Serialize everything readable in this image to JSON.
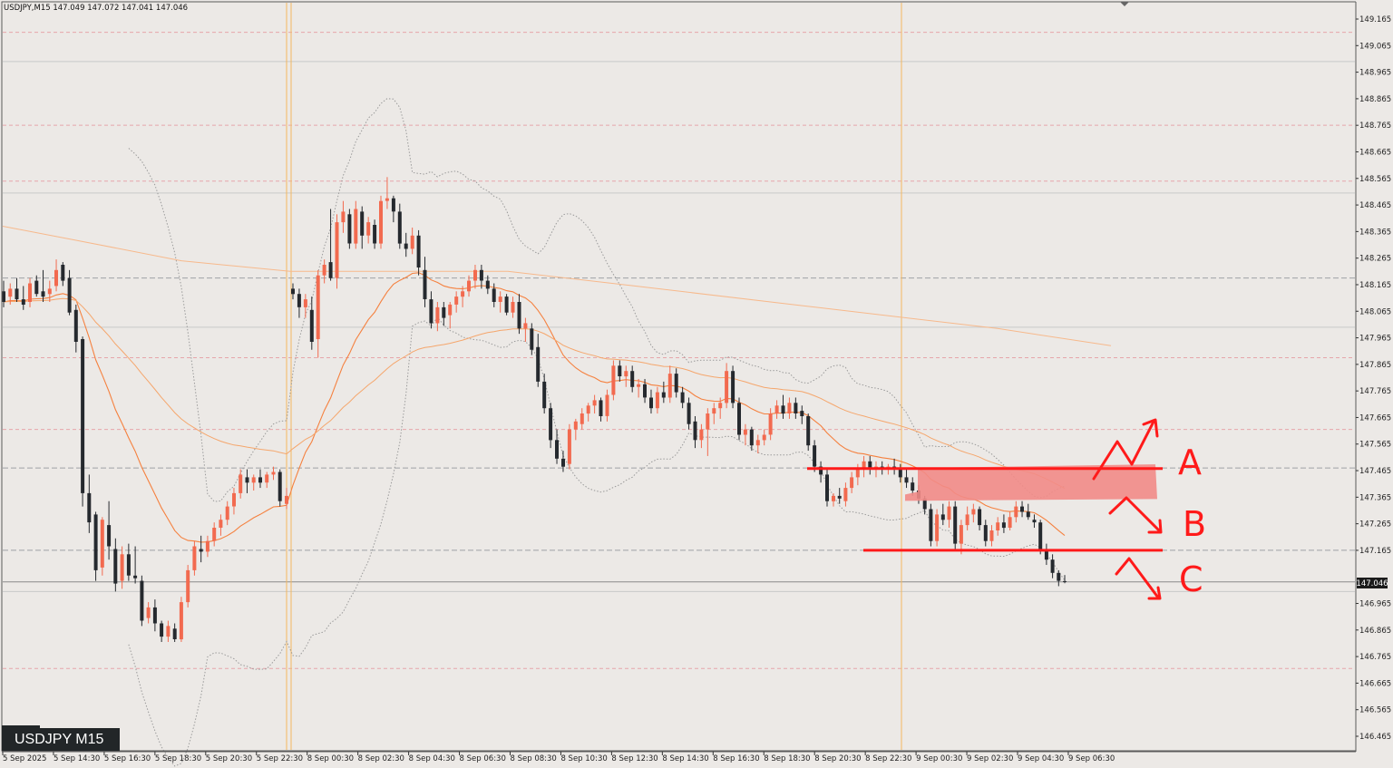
{
  "header": {
    "text": "USDJPY,M15  147.049 147.072 147.041 147.046"
  },
  "watermark": {
    "text": "USDJPY M15"
  },
  "price_tag": {
    "text": "147.046"
  },
  "colors": {
    "background": "#ece9e6",
    "bull": "#f26a4f",
    "bear": "#25292e",
    "ma": "#f59a58",
    "annotation": "#ff1a1a",
    "zone": "#f28b87",
    "session": "#f4b860"
  },
  "chart_data": {
    "type": "candlestick",
    "symbol": "USDJPY",
    "timeframe": "M15",
    "ylim": [
      146.415,
      149.215
    ],
    "yticks": [
      149.165,
      149.065,
      148.965,
      148.865,
      148.765,
      148.665,
      148.565,
      148.465,
      148.365,
      148.265,
      148.165,
      148.065,
      147.965,
      147.865,
      147.765,
      147.665,
      147.565,
      147.465,
      147.365,
      147.265,
      147.165,
      147.065,
      146.965,
      146.865,
      146.765,
      146.665,
      146.565,
      146.465
    ],
    "xticks": [
      "5 Sep 2025",
      "5 Sep 14:30",
      "5 Sep 16:30",
      "5 Sep 18:30",
      "5 Sep 20:30",
      "5 Sep 22:30",
      "8 Sep 00:30",
      "8 Sep 02:30",
      "8 Sep 04:30",
      "8 Sep 06:30",
      "8 Sep 08:30",
      "8 Sep 10:30",
      "8 Sep 12:30",
      "8 Sep 14:30",
      "8 Sep 16:30",
      "8 Sep 18:30",
      "8 Sep 20:30",
      "8 Sep 22:30",
      "9 Sep 00:30",
      "9 Sep 02:30",
      "9 Sep 04:30",
      "9 Sep 06:30"
    ],
    "current_price": 147.046,
    "annotations": {
      "zone_labels": [
        "A",
        "B",
        "C"
      ],
      "levels": [
        147.473,
        147.165
      ],
      "zone": [
        147.365,
        147.475
      ]
    },
    "candles": [
      {
        "o": 148.14,
        "h": 148.18,
        "l": 148.08,
        "c": 148.1
      },
      {
        "o": 148.12,
        "h": 148.17,
        "l": 148.09,
        "c": 148.15
      },
      {
        "o": 148.15,
        "h": 148.19,
        "l": 148.1,
        "c": 148.11
      },
      {
        "o": 148.11,
        "h": 148.16,
        "l": 148.07,
        "c": 148.09
      },
      {
        "o": 148.1,
        "h": 148.19,
        "l": 148.08,
        "c": 148.17
      },
      {
        "o": 148.18,
        "h": 148.2,
        "l": 148.12,
        "c": 148.13
      },
      {
        "o": 148.14,
        "h": 148.22,
        "l": 148.1,
        "c": 148.12
      },
      {
        "o": 148.13,
        "h": 148.18,
        "l": 148.1,
        "c": 148.15
      },
      {
        "o": 148.16,
        "h": 148.26,
        "l": 148.14,
        "c": 148.22
      },
      {
        "o": 148.24,
        "h": 148.25,
        "l": 148.16,
        "c": 148.18
      },
      {
        "o": 148.19,
        "h": 148.22,
        "l": 148.05,
        "c": 148.06
      },
      {
        "o": 148.07,
        "h": 148.09,
        "l": 147.91,
        "c": 147.95
      },
      {
        "o": 147.96,
        "h": 147.97,
        "l": 147.33,
        "c": 147.38
      },
      {
        "o": 147.38,
        "h": 147.45,
        "l": 147.23,
        "c": 147.27
      },
      {
        "o": 147.3,
        "h": 147.31,
        "l": 147.05,
        "c": 147.09
      },
      {
        "o": 147.1,
        "h": 147.29,
        "l": 147.07,
        "c": 147.28
      },
      {
        "o": 147.26,
        "h": 147.35,
        "l": 147.13,
        "c": 147.18
      },
      {
        "o": 147.17,
        "h": 147.21,
        "l": 147.01,
        "c": 147.04
      },
      {
        "o": 147.05,
        "h": 147.18,
        "l": 147.02,
        "c": 147.15
      },
      {
        "o": 147.15,
        "h": 147.19,
        "l": 147.05,
        "c": 147.07
      },
      {
        "o": 147.07,
        "h": 147.18,
        "l": 147.04,
        "c": 147.06
      },
      {
        "o": 147.05,
        "h": 147.07,
        "l": 146.88,
        "c": 146.9
      },
      {
        "o": 146.91,
        "h": 146.97,
        "l": 146.89,
        "c": 146.95
      },
      {
        "o": 146.95,
        "h": 146.98,
        "l": 146.86,
        "c": 146.89
      },
      {
        "o": 146.89,
        "h": 146.9,
        "l": 146.82,
        "c": 146.84
      },
      {
        "o": 146.84,
        "h": 146.9,
        "l": 146.82,
        "c": 146.88
      },
      {
        "o": 146.87,
        "h": 146.89,
        "l": 146.82,
        "c": 146.83
      },
      {
        "o": 146.83,
        "h": 146.99,
        "l": 146.82,
        "c": 146.97
      },
      {
        "o": 146.97,
        "h": 147.11,
        "l": 146.95,
        "c": 147.09
      },
      {
        "o": 147.09,
        "h": 147.2,
        "l": 147.07,
        "c": 147.18
      },
      {
        "o": 147.17,
        "h": 147.22,
        "l": 147.12,
        "c": 147.16
      },
      {
        "o": 147.16,
        "h": 147.22,
        "l": 147.14,
        "c": 147.2
      },
      {
        "o": 147.2,
        "h": 147.27,
        "l": 147.18,
        "c": 147.25
      },
      {
        "o": 147.25,
        "h": 147.3,
        "l": 147.22,
        "c": 147.28
      },
      {
        "o": 147.28,
        "h": 147.35,
        "l": 147.26,
        "c": 147.33
      },
      {
        "o": 147.33,
        "h": 147.4,
        "l": 147.3,
        "c": 147.38
      },
      {
        "o": 147.38,
        "h": 147.47,
        "l": 147.36,
        "c": 147.45
      },
      {
        "o": 147.44,
        "h": 147.47,
        "l": 147.38,
        "c": 147.42
      },
      {
        "o": 147.42,
        "h": 147.45,
        "l": 147.39,
        "c": 147.44
      },
      {
        "o": 147.44,
        "h": 147.47,
        "l": 147.4,
        "c": 147.42
      },
      {
        "o": 147.42,
        "h": 147.46,
        "l": 147.4,
        "c": 147.45
      },
      {
        "o": 147.45,
        "h": 147.48,
        "l": 147.43,
        "c": 147.46
      },
      {
        "o": 147.46,
        "h": 147.47,
        "l": 147.33,
        "c": 147.35
      },
      {
        "o": 147.34,
        "h": 147.4,
        "l": 147.32,
        "c": 147.37
      },
      {
        "o": 148.15,
        "h": 148.17,
        "l": 148.11,
        "c": 148.13
      },
      {
        "o": 148.13,
        "h": 148.15,
        "l": 148.04,
        "c": 148.08
      },
      {
        "o": 148.08,
        "h": 148.13,
        "l": 148.04,
        "c": 148.11
      },
      {
        "o": 148.07,
        "h": 148.12,
        "l": 147.92,
        "c": 147.95
      },
      {
        "o": 147.96,
        "h": 148.22,
        "l": 147.89,
        "c": 148.2
      },
      {
        "o": 148.2,
        "h": 148.26,
        "l": 148.17,
        "c": 148.24
      },
      {
        "o": 148.25,
        "h": 148.45,
        "l": 148.18,
        "c": 148.19
      },
      {
        "o": 148.19,
        "h": 148.43,
        "l": 148.15,
        "c": 148.4
      },
      {
        "o": 148.4,
        "h": 148.48,
        "l": 148.36,
        "c": 148.44
      },
      {
        "o": 148.43,
        "h": 148.45,
        "l": 148.3,
        "c": 148.32
      },
      {
        "o": 148.32,
        "h": 148.48,
        "l": 148.3,
        "c": 148.45
      },
      {
        "o": 148.44,
        "h": 148.46,
        "l": 148.3,
        "c": 148.35
      },
      {
        "o": 148.35,
        "h": 148.42,
        "l": 148.32,
        "c": 148.4
      },
      {
        "o": 148.39,
        "h": 148.41,
        "l": 148.3,
        "c": 148.32
      },
      {
        "o": 148.32,
        "h": 148.5,
        "l": 148.3,
        "c": 148.48
      },
      {
        "o": 148.48,
        "h": 148.57,
        "l": 148.45,
        "c": 148.49
      },
      {
        "o": 148.49,
        "h": 148.5,
        "l": 148.4,
        "c": 148.44
      },
      {
        "o": 148.44,
        "h": 148.47,
        "l": 148.3,
        "c": 148.32
      },
      {
        "o": 148.32,
        "h": 148.36,
        "l": 148.27,
        "c": 148.3
      },
      {
        "o": 148.3,
        "h": 148.38,
        "l": 148.28,
        "c": 148.35
      },
      {
        "o": 148.35,
        "h": 148.37,
        "l": 148.2,
        "c": 148.23
      },
      {
        "o": 148.22,
        "h": 148.27,
        "l": 148.08,
        "c": 148.11
      },
      {
        "o": 148.11,
        "h": 148.14,
        "l": 148.0,
        "c": 148.02
      },
      {
        "o": 148.02,
        "h": 148.1,
        "l": 147.99,
        "c": 148.08
      },
      {
        "o": 148.08,
        "h": 148.1,
        "l": 148.01,
        "c": 148.04
      },
      {
        "o": 148.05,
        "h": 148.1,
        "l": 148.0,
        "c": 148.09
      },
      {
        "o": 148.09,
        "h": 148.14,
        "l": 148.06,
        "c": 148.12
      },
      {
        "o": 148.12,
        "h": 148.16,
        "l": 148.08,
        "c": 148.14
      },
      {
        "o": 148.14,
        "h": 148.2,
        "l": 148.12,
        "c": 148.18
      },
      {
        "o": 148.18,
        "h": 148.24,
        "l": 148.15,
        "c": 148.22
      },
      {
        "o": 148.22,
        "h": 148.24,
        "l": 148.15,
        "c": 148.18
      },
      {
        "o": 148.18,
        "h": 148.2,
        "l": 148.13,
        "c": 148.15
      },
      {
        "o": 148.15,
        "h": 148.17,
        "l": 148.08,
        "c": 148.1
      },
      {
        "o": 148.1,
        "h": 148.14,
        "l": 148.06,
        "c": 148.12
      },
      {
        "o": 148.12,
        "h": 148.13,
        "l": 148.05,
        "c": 148.06
      },
      {
        "o": 148.06,
        "h": 148.12,
        "l": 148.04,
        "c": 148.1
      },
      {
        "o": 148.1,
        "h": 148.13,
        "l": 147.98,
        "c": 148.0
      },
      {
        "o": 148.0,
        "h": 148.04,
        "l": 147.95,
        "c": 148.02
      },
      {
        "o": 148.0,
        "h": 148.02,
        "l": 147.9,
        "c": 147.92
      },
      {
        "o": 147.93,
        "h": 147.98,
        "l": 147.78,
        "c": 147.8
      },
      {
        "o": 147.8,
        "h": 147.83,
        "l": 147.68,
        "c": 147.7
      },
      {
        "o": 147.7,
        "h": 147.72,
        "l": 147.55,
        "c": 147.58
      },
      {
        "o": 147.58,
        "h": 147.62,
        "l": 147.49,
        "c": 147.51
      },
      {
        "o": 147.51,
        "h": 147.54,
        "l": 147.46,
        "c": 147.48
      },
      {
        "o": 147.49,
        "h": 147.64,
        "l": 147.47,
        "c": 147.62
      },
      {
        "o": 147.62,
        "h": 147.66,
        "l": 147.58,
        "c": 147.65
      },
      {
        "o": 147.64,
        "h": 147.7,
        "l": 147.62,
        "c": 147.68
      },
      {
        "o": 147.68,
        "h": 147.72,
        "l": 147.65,
        "c": 147.71
      },
      {
        "o": 147.71,
        "h": 147.75,
        "l": 147.68,
        "c": 147.73
      },
      {
        "o": 147.73,
        "h": 147.74,
        "l": 147.65,
        "c": 147.67
      },
      {
        "o": 147.67,
        "h": 147.77,
        "l": 147.65,
        "c": 147.75
      },
      {
        "o": 147.75,
        "h": 147.88,
        "l": 147.73,
        "c": 147.86
      },
      {
        "o": 147.86,
        "h": 147.88,
        "l": 147.8,
        "c": 147.82
      },
      {
        "o": 147.82,
        "h": 147.86,
        "l": 147.78,
        "c": 147.84
      },
      {
        "o": 147.84,
        "h": 147.86,
        "l": 147.76,
        "c": 147.78
      },
      {
        "o": 147.78,
        "h": 147.81,
        "l": 147.74,
        "c": 147.79
      },
      {
        "o": 147.79,
        "h": 147.81,
        "l": 147.72,
        "c": 147.74
      },
      {
        "o": 147.74,
        "h": 147.77,
        "l": 147.68,
        "c": 147.7
      },
      {
        "o": 147.7,
        "h": 147.78,
        "l": 147.68,
        "c": 147.76
      },
      {
        "o": 147.76,
        "h": 147.8,
        "l": 147.72,
        "c": 147.74
      },
      {
        "o": 147.74,
        "h": 147.86,
        "l": 147.72,
        "c": 147.83
      },
      {
        "o": 147.83,
        "h": 147.85,
        "l": 147.74,
        "c": 147.76
      },
      {
        "o": 147.76,
        "h": 147.78,
        "l": 147.7,
        "c": 147.72
      },
      {
        "o": 147.72,
        "h": 147.74,
        "l": 147.62,
        "c": 147.64
      },
      {
        "o": 147.65,
        "h": 147.67,
        "l": 147.55,
        "c": 147.58
      },
      {
        "o": 147.58,
        "h": 147.64,
        "l": 147.55,
        "c": 147.62
      },
      {
        "o": 147.62,
        "h": 147.7,
        "l": 147.52,
        "c": 147.68
      },
      {
        "o": 147.68,
        "h": 147.72,
        "l": 147.64,
        "c": 147.7
      },
      {
        "o": 147.7,
        "h": 147.74,
        "l": 147.66,
        "c": 147.72
      },
      {
        "o": 147.72,
        "h": 147.87,
        "l": 147.7,
        "c": 147.84
      },
      {
        "o": 147.84,
        "h": 147.86,
        "l": 147.7,
        "c": 147.72
      },
      {
        "o": 147.72,
        "h": 147.74,
        "l": 147.58,
        "c": 147.6
      },
      {
        "o": 147.6,
        "h": 147.64,
        "l": 147.56,
        "c": 147.62
      },
      {
        "o": 147.62,
        "h": 147.63,
        "l": 147.54,
        "c": 147.56
      },
      {
        "o": 147.56,
        "h": 147.6,
        "l": 147.53,
        "c": 147.58
      },
      {
        "o": 147.58,
        "h": 147.62,
        "l": 147.56,
        "c": 147.6
      },
      {
        "o": 147.6,
        "h": 147.7,
        "l": 147.58,
        "c": 147.68
      },
      {
        "o": 147.68,
        "h": 147.73,
        "l": 147.66,
        "c": 147.71
      },
      {
        "o": 147.71,
        "h": 147.75,
        "l": 147.66,
        "c": 147.68
      },
      {
        "o": 147.68,
        "h": 147.74,
        "l": 147.66,
        "c": 147.72
      },
      {
        "o": 147.72,
        "h": 147.74,
        "l": 147.66,
        "c": 147.68
      },
      {
        "o": 147.69,
        "h": 147.71,
        "l": 147.64,
        "c": 147.67
      },
      {
        "o": 147.67,
        "h": 147.68,
        "l": 147.54,
        "c": 147.56
      },
      {
        "o": 147.56,
        "h": 147.58,
        "l": 147.46,
        "c": 147.48
      },
      {
        "o": 147.48,
        "h": 147.5,
        "l": 147.42,
        "c": 147.45
      },
      {
        "o": 147.45,
        "h": 147.47,
        "l": 147.33,
        "c": 147.35
      },
      {
        "o": 147.35,
        "h": 147.38,
        "l": 147.33,
        "c": 147.37
      },
      {
        "o": 147.37,
        "h": 147.4,
        "l": 147.34,
        "c": 147.36
      },
      {
        "o": 147.35,
        "h": 147.42,
        "l": 147.33,
        "c": 147.4
      },
      {
        "o": 147.4,
        "h": 147.46,
        "l": 147.38,
        "c": 147.44
      },
      {
        "o": 147.44,
        "h": 147.49,
        "l": 147.41,
        "c": 147.47
      },
      {
        "o": 147.47,
        "h": 147.52,
        "l": 147.44,
        "c": 147.5
      },
      {
        "o": 147.5,
        "h": 147.52,
        "l": 147.45,
        "c": 147.47
      },
      {
        "o": 147.47,
        "h": 147.5,
        "l": 147.44,
        "c": 147.48
      },
      {
        "o": 147.48,
        "h": 147.5,
        "l": 147.45,
        "c": 147.47
      },
      {
        "o": 147.47,
        "h": 147.49,
        "l": 147.45,
        "c": 147.48
      },
      {
        "o": 147.48,
        "h": 147.51,
        "l": 147.45,
        "c": 147.47
      },
      {
        "o": 147.47,
        "h": 147.49,
        "l": 147.42,
        "c": 147.44
      },
      {
        "o": 147.44,
        "h": 147.47,
        "l": 147.4,
        "c": 147.42
      },
      {
        "o": 147.42,
        "h": 147.44,
        "l": 147.37,
        "c": 147.39
      },
      {
        "o": 147.39,
        "h": 147.41,
        "l": 147.34,
        "c": 147.36
      },
      {
        "o": 147.36,
        "h": 147.37,
        "l": 147.3,
        "c": 147.32
      },
      {
        "o": 147.32,
        "h": 147.34,
        "l": 147.18,
        "c": 147.2
      },
      {
        "o": 147.2,
        "h": 147.32,
        "l": 147.18,
        "c": 147.3
      },
      {
        "o": 147.3,
        "h": 147.34,
        "l": 147.26,
        "c": 147.28
      },
      {
        "o": 147.28,
        "h": 147.35,
        "l": 147.25,
        "c": 147.33
      },
      {
        "o": 147.33,
        "h": 147.35,
        "l": 147.17,
        "c": 147.19
      },
      {
        "o": 147.19,
        "h": 147.28,
        "l": 147.15,
        "c": 147.26
      },
      {
        "o": 147.26,
        "h": 147.33,
        "l": 147.24,
        "c": 147.3
      },
      {
        "o": 147.3,
        "h": 147.34,
        "l": 147.27,
        "c": 147.32
      },
      {
        "o": 147.32,
        "h": 147.33,
        "l": 147.24,
        "c": 147.26
      },
      {
        "o": 147.26,
        "h": 147.28,
        "l": 147.18,
        "c": 147.2
      },
      {
        "o": 147.2,
        "h": 147.26,
        "l": 147.18,
        "c": 147.24
      },
      {
        "o": 147.24,
        "h": 147.29,
        "l": 147.22,
        "c": 147.27
      },
      {
        "o": 147.27,
        "h": 147.3,
        "l": 147.23,
        "c": 147.25
      },
      {
        "o": 147.25,
        "h": 147.31,
        "l": 147.24,
        "c": 147.29
      },
      {
        "o": 147.29,
        "h": 147.35,
        "l": 147.27,
        "c": 147.33
      },
      {
        "o": 147.33,
        "h": 147.35,
        "l": 147.29,
        "c": 147.31
      },
      {
        "o": 147.31,
        "h": 147.34,
        "l": 147.28,
        "c": 147.29
      },
      {
        "o": 147.28,
        "h": 147.3,
        "l": 147.25,
        "c": 147.27
      },
      {
        "o": 147.27,
        "h": 147.28,
        "l": 147.15,
        "c": 147.17
      },
      {
        "o": 147.17,
        "h": 147.19,
        "l": 147.11,
        "c": 147.13
      },
      {
        "o": 147.13,
        "h": 147.15,
        "l": 147.06,
        "c": 147.08
      },
      {
        "o": 147.08,
        "h": 147.09,
        "l": 147.03,
        "c": 147.05
      },
      {
        "o": 147.049,
        "h": 147.072,
        "l": 147.041,
        "c": 147.046
      }
    ]
  }
}
